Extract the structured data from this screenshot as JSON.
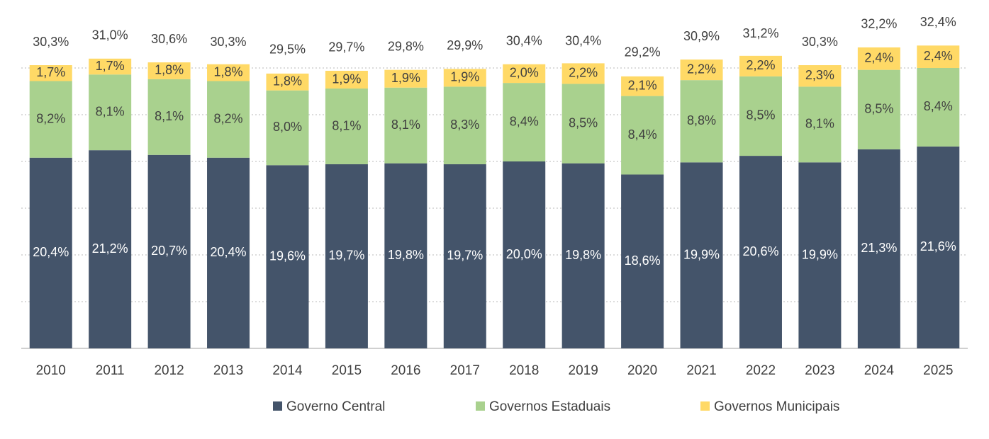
{
  "chart_data": {
    "type": "stacked_bar",
    "categories": [
      "2010",
      "2011",
      "2012",
      "2013",
      "2014",
      "2015",
      "2016",
      "2017",
      "2018",
      "2019",
      "2020",
      "2021",
      "2022",
      "2023",
      "2024",
      "2025"
    ],
    "series": [
      {
        "name": "Governo Central",
        "color": "#44546a",
        "values": [
          20.4,
          21.2,
          20.7,
          20.4,
          19.6,
          19.7,
          19.8,
          19.7,
          20.0,
          19.8,
          18.6,
          19.9,
          20.6,
          19.9,
          21.3,
          21.6
        ],
        "value_labels": [
          "20,4%",
          "21,2%",
          "20,7%",
          "20,4%",
          "19,6%",
          "19,7%",
          "19,8%",
          "19,7%",
          "20,0%",
          "19,8%",
          "18,6%",
          "19,9%",
          "20,6%",
          "19,9%",
          "21,3%",
          "21,6%"
        ]
      },
      {
        "name": "Governos Estaduais",
        "color": "#a9d18e",
        "values": [
          8.2,
          8.1,
          8.1,
          8.2,
          8.0,
          8.1,
          8.1,
          8.3,
          8.4,
          8.5,
          8.4,
          8.8,
          8.5,
          8.1,
          8.5,
          8.4
        ],
        "value_labels": [
          "8,2%",
          "8,1%",
          "8,1%",
          "8,2%",
          "8,0%",
          "8,1%",
          "8,1%",
          "8,3%",
          "8,4%",
          "8,5%",
          "8,4%",
          "8,8%",
          "8,5%",
          "8,1%",
          "8,5%",
          "8,4%"
        ]
      },
      {
        "name": "Governos Municipais",
        "color": "#ffd966",
        "values": [
          1.7,
          1.7,
          1.8,
          1.8,
          1.8,
          1.9,
          1.9,
          1.9,
          2.0,
          2.2,
          2.1,
          2.2,
          2.2,
          2.3,
          2.4,
          2.4
        ],
        "value_labels": [
          "1,7%",
          "1,7%",
          "1,8%",
          "1,8%",
          "1,8%",
          "1,9%",
          "1,9%",
          "1,9%",
          "2,0%",
          "2,2%",
          "2,1%",
          "2,2%",
          "2,2%",
          "2,3%",
          "2,4%",
          "2,4%"
        ]
      }
    ],
    "totals": [
      30.3,
      31.0,
      30.6,
      30.3,
      29.5,
      29.7,
      29.8,
      29.9,
      30.4,
      30.4,
      29.2,
      30.9,
      31.2,
      30.3,
      32.2,
      32.4
    ],
    "total_labels": [
      "30,3%",
      "31,0%",
      "30,6%",
      "30,3%",
      "29,5%",
      "29,7%",
      "29,8%",
      "29,9%",
      "30,4%",
      "30,4%",
      "29,2%",
      "30,9%",
      "31,2%",
      "30,3%",
      "32,2%",
      "32,4%"
    ],
    "ylim": [
      0,
      35
    ],
    "yticks": [
      0,
      5,
      10,
      15,
      20,
      25,
      30
    ],
    "grid": true,
    "legend": "bottom"
  }
}
